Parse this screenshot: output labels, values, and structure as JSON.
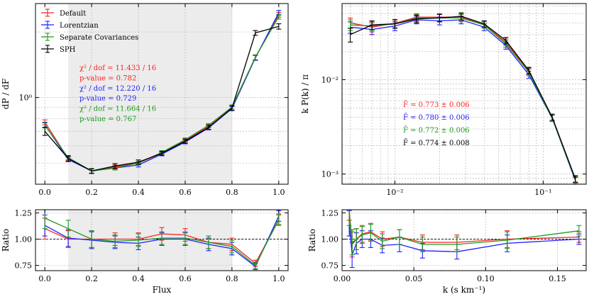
{
  "colors": {
    "Default": "#ff2020",
    "Lorentzian": "#1f1fff",
    "Separate Covariances": "#1f9a1f",
    "SPH": "#000000",
    "shade": "#ececec"
  },
  "chart_data": [
    {
      "id": "pdf",
      "type": "line",
      "xlabel": "",
      "ylabel": "dP / dF",
      "yscale": "log",
      "xlim": [
        -0.04,
        1.04
      ],
      "ylim": [
        0.4,
        2.7
      ],
      "xticks": [
        0.0,
        0.2,
        0.4,
        0.6,
        0.8,
        1.0
      ],
      "xticklabels": [
        "0.0",
        "0.2",
        "0.4",
        "0.6",
        "0.8",
        "1.0"
      ],
      "yticks": [
        1.0
      ],
      "yticklabels": [
        "10⁰"
      ],
      "shaded_range": [
        0.1,
        0.8
      ],
      "legend": [
        "Default",
        "Lorentzian",
        "Separate Covariances",
        "SPH"
      ],
      "annotations": [
        {
          "text": "χ² / dof = 11.433 / 16",
          "series": "Default"
        },
        {
          "text": "p-value = 0.782",
          "series": "Default"
        },
        {
          "text": "χ² / dof = 12.220 / 16",
          "series": "Lorentzian"
        },
        {
          "text": "p-value = 0.729",
          "series": "Lorentzian"
        },
        {
          "text": "χ² / dof = 11.664 / 16",
          "series": "Separate Covariances"
        },
        {
          "text": "p-value = 0.767",
          "series": "Separate Covariances"
        }
      ],
      "x": [
        0.0,
        0.1,
        0.2,
        0.3,
        0.4,
        0.5,
        0.6,
        0.7,
        0.8,
        0.9,
        1.0
      ],
      "series": [
        {
          "name": "Default",
          "values": [
            0.77,
            0.525,
            0.46,
            0.48,
            0.5,
            0.555,
            0.635,
            0.74,
            0.905,
            1.53,
            2.4
          ],
          "err": [
            0.02,
            0.012,
            0.01,
            0.01,
            0.01,
            0.01,
            0.012,
            0.014,
            0.02,
            0.04,
            0.06
          ]
        },
        {
          "name": "Lorentzian",
          "values": [
            0.75,
            0.52,
            0.46,
            0.475,
            0.49,
            0.55,
            0.625,
            0.725,
            0.89,
            1.52,
            2.45
          ],
          "err": [
            0.02,
            0.012,
            0.01,
            0.01,
            0.01,
            0.01,
            0.012,
            0.014,
            0.02,
            0.04,
            0.06
          ]
        },
        {
          "name": "Separate Covariances",
          "values": [
            0.745,
            0.53,
            0.46,
            0.475,
            0.5,
            0.56,
            0.64,
            0.745,
            0.905,
            1.53,
            2.35
          ],
          "err": [
            0.02,
            0.012,
            0.01,
            0.01,
            0.01,
            0.01,
            0.012,
            0.014,
            0.02,
            0.04,
            0.06
          ]
        },
        {
          "name": "SPH",
          "values": [
            0.7,
            0.525,
            0.46,
            0.485,
            0.505,
            0.555,
            0.63,
            0.73,
            0.895,
            1.98,
            2.12
          ],
          "err": [
            0.03,
            0.015,
            0.012,
            0.012,
            0.012,
            0.012,
            0.014,
            0.016,
            0.022,
            0.05,
            0.06
          ]
        }
      ]
    },
    {
      "id": "pk",
      "type": "line",
      "xlabel": "",
      "ylabel": "k P(k) / π",
      "xscale": "log",
      "yscale": "log",
      "xlim": [
        0.0044,
        0.195
      ],
      "ylim": [
        0.00078,
        0.064
      ],
      "xticks": [
        0.01,
        0.1
      ],
      "xticklabels": [
        "10⁻²",
        "10⁻¹"
      ],
      "yticks": [
        0.001,
        0.01
      ],
      "yticklabels": [
        "10⁻³",
        "10⁻²"
      ],
      "annotations": [
        {
          "text": "F̄ = 0.773 ± 0.006",
          "series": "Default"
        },
        {
          "text": "F̄ = 0.780 ± 0.006",
          "series": "Lorentzian"
        },
        {
          "text": "F̄ = 0.772 ± 0.006",
          "series": "Separate Covariances"
        },
        {
          "text": "F̄ = 0.774 ± 0.008",
          "series": "SPH"
        }
      ],
      "x": [
        0.005,
        0.007,
        0.01,
        0.014,
        0.02,
        0.028,
        0.04,
        0.056,
        0.08,
        0.115,
        0.165
      ],
      "series": [
        {
          "name": "Default",
          "values": [
            0.04,
            0.036,
            0.0395,
            0.046,
            0.046,
            0.046,
            0.038,
            0.025,
            0.0123,
            0.004,
            0.00088
          ],
          "err": [
            0.005,
            0.004,
            0.004,
            0.004,
            0.004,
            0.004,
            0.003,
            0.002,
            0.001,
            0.0003,
            7e-05
          ]
        },
        {
          "name": "Lorentzian",
          "values": [
            0.036,
            0.034,
            0.037,
            0.043,
            0.042,
            0.043,
            0.036,
            0.023,
            0.0113,
            0.0039,
            0.00085
          ],
          "err": [
            0.005,
            0.004,
            0.004,
            0.004,
            0.004,
            0.004,
            0.003,
            0.002,
            0.001,
            0.0003,
            7e-05
          ]
        },
        {
          "name": "Separate Covariances",
          "values": [
            0.038,
            0.037,
            0.039,
            0.045,
            0.045,
            0.045,
            0.038,
            0.024,
            0.012,
            0.0039,
            0.00087
          ],
          "err": [
            0.005,
            0.004,
            0.004,
            0.004,
            0.004,
            0.004,
            0.003,
            0.002,
            0.001,
            0.0003,
            7e-05
          ]
        },
        {
          "name": "SPH",
          "values": [
            0.03,
            0.038,
            0.039,
            0.044,
            0.045,
            0.047,
            0.039,
            0.026,
            0.0125,
            0.004,
            0.00089
          ],
          "err": [
            0.005,
            0.004,
            0.004,
            0.004,
            0.004,
            0.004,
            0.003,
            0.002,
            0.001,
            0.0003,
            7e-05
          ]
        }
      ]
    },
    {
      "id": "ratio_flux",
      "type": "line",
      "xlabel": "Flux",
      "ylabel": "Ratio",
      "xlim": [
        -0.04,
        1.04
      ],
      "ylim": [
        0.7,
        1.28
      ],
      "xticks": [
        0.0,
        0.2,
        0.4,
        0.6,
        0.8,
        1.0
      ],
      "xticklabels": [
        "0.0",
        "0.2",
        "0.4",
        "0.6",
        "0.8",
        "1.0"
      ],
      "yticks": [
        0.75,
        1.0,
        1.25
      ],
      "yticklabels": [
        "0.75",
        "1.00",
        "1.25"
      ],
      "shaded_range": [
        0.1,
        0.8
      ],
      "reference_line": 1.0,
      "x": [
        0.0,
        0.1,
        0.2,
        0.3,
        0.4,
        0.5,
        0.6,
        0.7,
        0.8,
        0.9,
        1.0
      ],
      "series": [
        {
          "name": "Default",
          "values": [
            1.1,
            1.0,
            1.0,
            1.0,
            1.0,
            1.05,
            1.04,
            0.97,
            0.95,
            0.77,
            1.18
          ],
          "err": [
            0.1,
            0.08,
            0.08,
            0.06,
            0.06,
            0.06,
            0.06,
            0.06,
            0.06,
            0.03,
            0.05
          ]
        },
        {
          "name": "Lorentzian",
          "values": [
            1.13,
            1.01,
            0.99,
            0.97,
            0.96,
            1.0,
            1.0,
            0.95,
            0.91,
            0.74,
            1.22
          ],
          "err": [
            0.1,
            0.08,
            0.08,
            0.06,
            0.06,
            0.06,
            0.06,
            0.06,
            0.06,
            0.03,
            0.05
          ]
        },
        {
          "name": "Separate Covariances",
          "values": [
            1.2,
            1.1,
            1.0,
            0.98,
            0.99,
            1.01,
            1.01,
            0.97,
            0.93,
            0.75,
            1.19
          ],
          "err": [
            0.1,
            0.08,
            0.08,
            0.06,
            0.06,
            0.06,
            0.06,
            0.06,
            0.06,
            0.03,
            0.05
          ]
        }
      ]
    },
    {
      "id": "ratio_k",
      "type": "line",
      "xlabel": "k (s km⁻¹)",
      "ylabel": "Ratio",
      "xlim": [
        0.0,
        0.17
      ],
      "ylim": [
        0.7,
        1.28
      ],
      "xticks": [
        0.0,
        0.05,
        0.1,
        0.15
      ],
      "xticklabels": [
        "0.00",
        "0.05",
        "0.10",
        "0.15"
      ],
      "yticks": [
        0.75,
        1.0,
        1.25
      ],
      "yticklabels": [
        "0.75",
        "1.00",
        "1.25"
      ],
      "reference_line": 1.0,
      "x": [
        0.005,
        0.007,
        0.01,
        0.014,
        0.02,
        0.028,
        0.04,
        0.056,
        0.08,
        0.115,
        0.165
      ],
      "series": [
        {
          "name": "Default",
          "values": [
            1.3,
            0.95,
            1.0,
            1.05,
            1.07,
            1.0,
            1.02,
            0.97,
            0.97,
            1.0,
            1.02
          ],
          "err": [
            0.12,
            0.12,
            0.1,
            0.08,
            0.08,
            0.07,
            0.07,
            0.07,
            0.07,
            0.08,
            0.05
          ]
        },
        {
          "name": "Lorentzian",
          "values": [
            1.15,
            0.85,
            0.96,
            1.0,
            1.0,
            0.94,
            0.95,
            0.89,
            0.88,
            0.96,
            1.0
          ],
          "err": [
            0.12,
            0.12,
            0.1,
            0.08,
            0.08,
            0.07,
            0.07,
            0.07,
            0.07,
            0.08,
            0.05
          ]
        },
        {
          "name": "Separate Covariances",
          "values": [
            1.25,
            0.97,
            1.0,
            1.04,
            1.06,
            0.98,
            1.02,
            0.95,
            0.95,
            0.99,
            1.08
          ],
          "err": [
            0.12,
            0.12,
            0.1,
            0.08,
            0.08,
            0.07,
            0.07,
            0.07,
            0.07,
            0.08,
            0.05
          ]
        }
      ]
    }
  ]
}
